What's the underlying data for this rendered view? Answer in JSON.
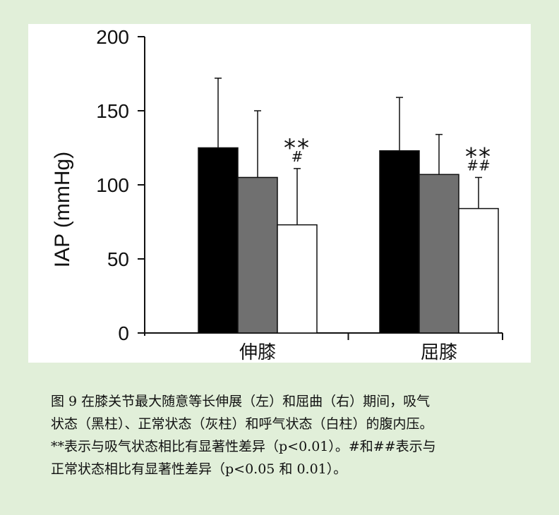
{
  "chart_data": {
    "type": "bar",
    "ylabel": "IAP (mmHg)",
    "ylim": [
      0,
      200
    ],
    "yticks": [
      0,
      50,
      100,
      150,
      200
    ],
    "categories": [
      "伸膝",
      "屈膝"
    ],
    "series": [
      {
        "color": "#000000",
        "values": [
          125,
          123
        ],
        "errors": [
          47,
          36
        ]
      },
      {
        "color": "#707070",
        "values": [
          105,
          107
        ],
        "errors": [
          45,
          27
        ]
      },
      {
        "color": "#ffffff",
        "values": [
          73,
          84
        ],
        "errors": [
          38,
          21
        ]
      }
    ],
    "annotations": [
      {
        "category": 0,
        "series": 2,
        "lines": [
          "**",
          "#"
        ]
      },
      {
        "category": 1,
        "series": 2,
        "lines": [
          "**",
          "##"
        ]
      }
    ],
    "grid": false,
    "legend": "none"
  },
  "caption": {
    "lines": [
      "图 9  在膝关节最大随意等长伸展（左）和屈曲（右）期间，吸气",
      "状态（黑柱）、正常状态（灰柱）和呼气状态（白柱）的腹内压。",
      "**表示与吸气状态相比有显著性差异（p<0.01）。#和##表示与",
      "正常状态相比有显著性差异（p<0.05 和 0.01）。"
    ]
  }
}
